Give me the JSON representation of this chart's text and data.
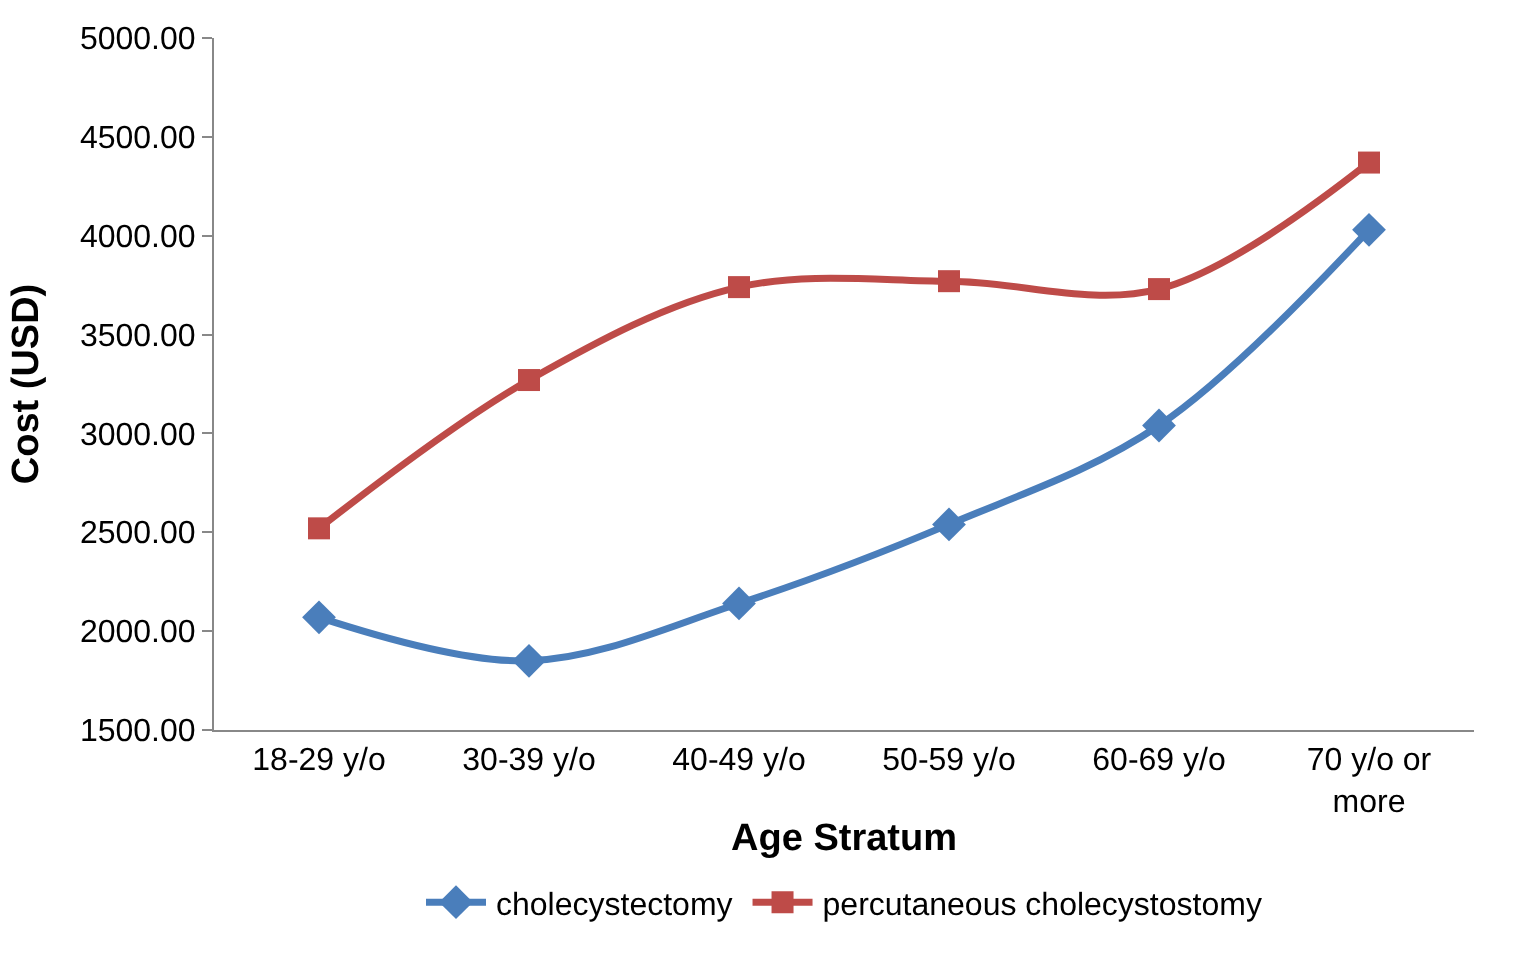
{
  "chart_data": {
    "type": "line",
    "xlabel": "Age Stratum",
    "ylabel": "Cost (USD)",
    "categories": [
      "18-29 y/o",
      "30-39 y/o",
      "40-49 y/o",
      "50-59 y/o",
      "60-69 y/o",
      "70 y/o or more"
    ],
    "series": [
      {
        "name": "cholecystectomy",
        "color": "#4a7ebb",
        "marker": "diamond",
        "values": [
          2070,
          1850,
          2140,
          2540,
          3040,
          4030
        ]
      },
      {
        "name": "percutaneous cholecystostomy",
        "color": "#be4b48",
        "marker": "square",
        "values": [
          2520,
          3270,
          3740,
          3770,
          3730,
          4370
        ]
      }
    ],
    "ylim": [
      1500,
      5000
    ],
    "yticks": [
      {
        "value": 1500,
        "label": "1500.00"
      },
      {
        "value": 2000,
        "label": "2000.00"
      },
      {
        "value": 2500,
        "label": "2500.00"
      },
      {
        "value": 3000,
        "label": "3000.00"
      },
      {
        "value": 3500,
        "label": "3500.00"
      },
      {
        "value": 4000,
        "label": "4000.00"
      },
      {
        "value": 4500,
        "label": "4500.00"
      },
      {
        "value": 5000,
        "label": "5000.00"
      }
    ],
    "legend": "bottom",
    "line_style": "solid"
  }
}
